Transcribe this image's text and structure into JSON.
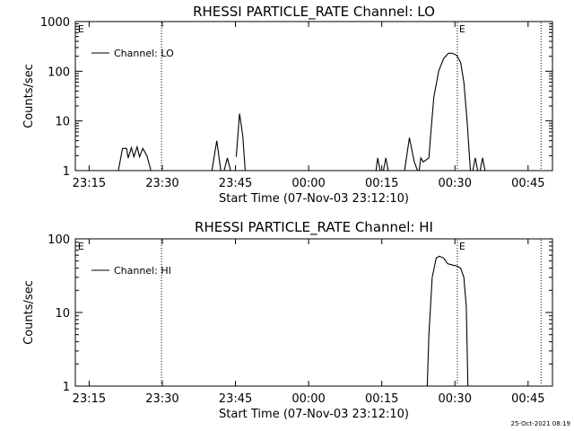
{
  "stamp": "25-Oct-2021 08:19",
  "chart_data": [
    {
      "type": "line",
      "title": "RHESSI PARTICLE_RATE Channel: LO",
      "xlabel": "Start Time (07-Nov-03 23:12:10)",
      "ylabel": "Counts/sec",
      "yscale": "log",
      "xlim": [
        "23:12:10",
        "00:50:00"
      ],
      "ylim": [
        1,
        1000
      ],
      "xticks": [
        "23:15",
        "23:30",
        "23:45",
        "00:00",
        "00:15",
        "00:30",
        "00:45"
      ],
      "yticks": [
        "1",
        "10",
        "100",
        "1000"
      ],
      "legend": {
        "position": "top-left",
        "entries": [
          "Channel: LO"
        ]
      },
      "vlines": [
        "23:29:50",
        "00:30:30",
        "00:47:40"
      ],
      "markers": [
        {
          "x": "23:12:30",
          "label": "E"
        },
        {
          "x": "00:30:40",
          "label": "E"
        }
      ],
      "series": [
        {
          "name": "Channel: LO",
          "segments": [
            [
              [
                "23:12:20",
                1
              ],
              [
                "23:21:00",
                1
              ],
              [
                "23:21:50",
                2.8
              ],
              [
                "23:22:40",
                2.8
              ],
              [
                "23:23:00",
                1.8
              ],
              [
                "23:23:40",
                2.9
              ],
              [
                "23:24:10",
                1.9
              ],
              [
                "23:24:50",
                3.0
              ],
              [
                "23:25:20",
                1.9
              ],
              [
                "23:26:00",
                2.8
              ],
              [
                "23:26:50",
                2.0
              ],
              [
                "23:27:40",
                1
              ]
            ],
            [
              [
                "23:40:10",
                1
              ],
              [
                "23:41:10",
                4.0
              ],
              [
                "23:42:00",
                1
              ]
            ],
            [
              [
                "23:42:40",
                1
              ],
              [
                "23:43:20",
                1.8
              ],
              [
                "23:44:00",
                1
              ]
            ],
            [
              [
                "23:45:10",
                1.9
              ],
              [
                "23:45:50",
                14
              ],
              [
                "23:46:30",
                5
              ],
              [
                "23:47:00",
                1
              ]
            ],
            [
              [
                "00:13:50",
                1
              ],
              [
                "00:14:10",
                1.8
              ],
              [
                "00:14:40",
                1
              ]
            ],
            [
              [
                "00:15:20",
                1
              ],
              [
                "00:15:50",
                1.8
              ],
              [
                "00:16:20",
                1
              ]
            ],
            [
              [
                "00:19:40",
                1
              ],
              [
                "00:20:40",
                4.6
              ],
              [
                "00:21:40",
                1.5
              ],
              [
                "00:22:20",
                1
              ]
            ],
            [
              [
                "00:22:40",
                1
              ],
              [
                "00:23:00",
                1.8
              ],
              [
                "00:23:30",
                1.5
              ],
              [
                "00:24:40",
                1.8
              ],
              [
                "00:25:00",
                5
              ],
              [
                "00:25:40",
                30
              ],
              [
                "00:26:40",
                100
              ],
              [
                "00:27:40",
                180
              ],
              [
                "00:28:40",
                230
              ],
              [
                "00:29:30",
                230
              ],
              [
                "00:30:20",
                210
              ],
              [
                "00:31:10",
                150
              ],
              [
                "00:31:50",
                60
              ],
              [
                "00:32:30",
                10
              ],
              [
                "00:33:10",
                1
              ]
            ],
            [
              [
                "00:33:40",
                1
              ],
              [
                "00:34:10",
                1.8
              ],
              [
                "00:34:40",
                1
              ]
            ],
            [
              [
                "00:35:10",
                1
              ],
              [
                "00:35:40",
                1.8
              ],
              [
                "00:36:10",
                1
              ]
            ]
          ]
        }
      ]
    },
    {
      "type": "line",
      "title": "RHESSI PARTICLE_RATE Channel: HI",
      "xlabel": "Start Time (07-Nov-03 23:12:10)",
      "ylabel": "Counts/sec",
      "yscale": "log",
      "xlim": [
        "23:12:10",
        "00:50:00"
      ],
      "ylim": [
        1,
        100
      ],
      "xticks": [
        "23:15",
        "23:30",
        "23:45",
        "00:00",
        "00:15",
        "00:30",
        "00:45"
      ],
      "yticks": [
        "1",
        "10",
        "100"
      ],
      "legend": {
        "position": "top-left",
        "entries": [
          "Channel: HI"
        ]
      },
      "vlines": [
        "23:29:50",
        "00:30:30",
        "00:47:40"
      ],
      "markers": [
        {
          "x": "23:12:30",
          "label": "E"
        },
        {
          "x": "00:30:40",
          "label": "E"
        }
      ],
      "series": [
        {
          "name": "Channel: HI",
          "segments": [
            [
              [
                "00:24:20",
                1
              ],
              [
                "00:24:40",
                5
              ],
              [
                "00:25:20",
                30
              ],
              [
                "00:26:10",
                55
              ],
              [
                "00:26:50",
                58
              ],
              [
                "00:27:40",
                55
              ],
              [
                "00:28:30",
                46
              ],
              [
                "00:29:30",
                44
              ],
              [
                "00:30:20",
                43
              ],
              [
                "00:31:10",
                40
              ],
              [
                "00:31:50",
                30
              ],
              [
                "00:32:20",
                12
              ],
              [
                "00:32:40",
                1
              ]
            ]
          ]
        }
      ]
    }
  ]
}
